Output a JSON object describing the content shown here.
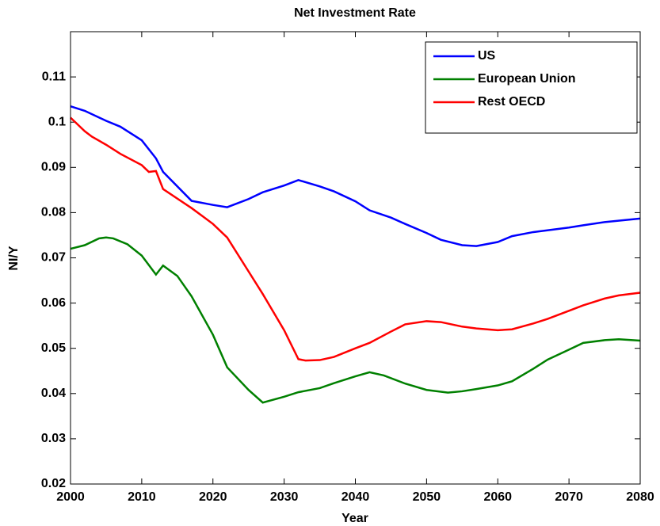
{
  "chart_data": {
    "type": "line",
    "title": "Net Investment Rate",
    "xlabel": "Year",
    "ylabel": "NI/Y",
    "xlim": [
      2000,
      2080
    ],
    "xticks": [
      2000,
      2010,
      2020,
      2030,
      2040,
      2050,
      2060,
      2070,
      2080
    ],
    "ylim": [
      0.02,
      0.12
    ],
    "yticks": [
      0.02,
      0.03,
      0.04,
      0.05,
      0.06,
      0.07,
      0.08,
      0.09,
      0.1,
      0.11
    ],
    "legend": "upper right",
    "series": [
      {
        "name": "US",
        "color": "#0000ff",
        "x": [
          2000,
          2002,
          2005,
          2007,
          2010,
          2012,
          2013,
          2017,
          2020,
          2022,
          2025,
          2027,
          2030,
          2032,
          2035,
          2037,
          2040,
          2042,
          2045,
          2047,
          2050,
          2052,
          2055,
          2057,
          2060,
          2062,
          2065,
          2070,
          2072,
          2075,
          2080
        ],
        "values": [
          0.1035,
          0.1025,
          0.1003,
          0.099,
          0.096,
          0.092,
          0.089,
          0.0826,
          0.0817,
          0.0812,
          0.083,
          0.0845,
          0.086,
          0.0872,
          0.0858,
          0.0847,
          0.0825,
          0.0805,
          0.0789,
          0.0775,
          0.0755,
          0.074,
          0.0728,
          0.0726,
          0.0735,
          0.0748,
          0.0757,
          0.0767,
          0.0772,
          0.0779,
          0.0787
        ]
      },
      {
        "name": "European Union",
        "color": "#008000",
        "x": [
          2000,
          2002,
          2004,
          2005,
          2006,
          2008,
          2010,
          2012,
          2013,
          2015,
          2017,
          2020,
          2022,
          2025,
          2027,
          2030,
          2032,
          2035,
          2037,
          2040,
          2042,
          2044,
          2047,
          2050,
          2053,
          2055,
          2057,
          2060,
          2062,
          2065,
          2067,
          2070,
          2072,
          2075,
          2077,
          2080
        ],
        "values": [
          0.072,
          0.0728,
          0.0743,
          0.0745,
          0.0743,
          0.073,
          0.0705,
          0.0663,
          0.0683,
          0.066,
          0.0615,
          0.053,
          0.0458,
          0.0408,
          0.038,
          0.0393,
          0.0403,
          0.0412,
          0.0423,
          0.0438,
          0.0447,
          0.044,
          0.0422,
          0.0408,
          0.0402,
          0.0405,
          0.041,
          0.0418,
          0.0427,
          0.0455,
          0.0475,
          0.0497,
          0.0512,
          0.0518,
          0.052,
          0.0517
        ]
      },
      {
        "name": "Rest OECD",
        "color": "#ff0000",
        "x": [
          2000,
          2002,
          2003,
          2005,
          2007,
          2010,
          2011,
          2012,
          2013,
          2017,
          2020,
          2022,
          2025,
          2027,
          2030,
          2032,
          2033,
          2035,
          2037,
          2040,
          2042,
          2045,
          2047,
          2050,
          2052,
          2055,
          2057,
          2060,
          2062,
          2065,
          2067,
          2070,
          2072,
          2075,
          2077,
          2080
        ],
        "values": [
          0.101,
          0.098,
          0.0968,
          0.095,
          0.093,
          0.0905,
          0.089,
          0.0892,
          0.0852,
          0.081,
          0.0775,
          0.0745,
          0.067,
          0.062,
          0.054,
          0.0476,
          0.0473,
          0.0474,
          0.0481,
          0.05,
          0.0512,
          0.0537,
          0.0553,
          0.056,
          0.0558,
          0.0548,
          0.0544,
          0.054,
          0.0542,
          0.0555,
          0.0565,
          0.0583,
          0.0595,
          0.061,
          0.0617,
          0.0623
        ]
      }
    ]
  }
}
